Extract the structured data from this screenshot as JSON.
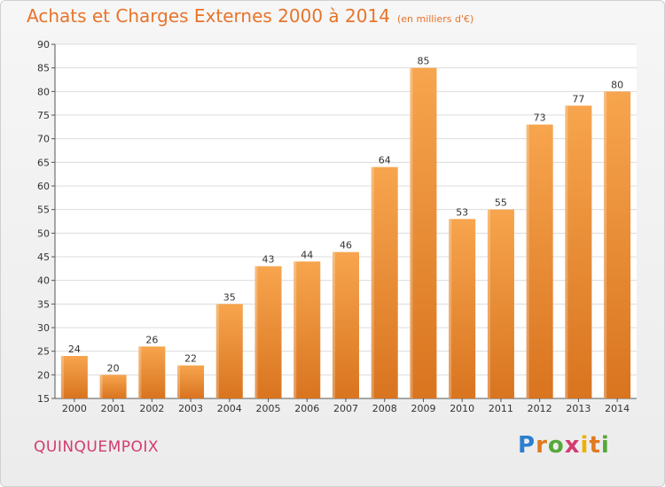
{
  "header": {
    "title": "Achats et Charges Externes 2000 à 2014",
    "subtitle": "(en milliers d'€)"
  },
  "location": "QUINQUEMPOIX",
  "logo": {
    "text": "Proxiti"
  },
  "colors": {
    "bar_top": "#f7a54e",
    "bar_bottom": "#d9741f",
    "title": "#e8742a",
    "location": "#d23c6e"
  },
  "chart_data": {
    "type": "bar",
    "title": "Achats et Charges Externes 2000 à 2014",
    "subtitle": "(en milliers d'€)",
    "categories": [
      "2000",
      "2001",
      "2002",
      "2003",
      "2004",
      "2005",
      "2006",
      "2007",
      "2008",
      "2009",
      "2010",
      "2011",
      "2012",
      "2013",
      "2014"
    ],
    "values": [
      24,
      20,
      26,
      22,
      35,
      43,
      44,
      46,
      64,
      85,
      53,
      55,
      73,
      77,
      80
    ],
    "xlabel": "",
    "ylabel": "",
    "ylim": [
      15,
      90
    ],
    "yticks": [
      15,
      20,
      25,
      30,
      35,
      40,
      45,
      50,
      55,
      60,
      65,
      70,
      75,
      80,
      85,
      90
    ],
    "grid": true,
    "legend": "none",
    "data_labels": true
  }
}
